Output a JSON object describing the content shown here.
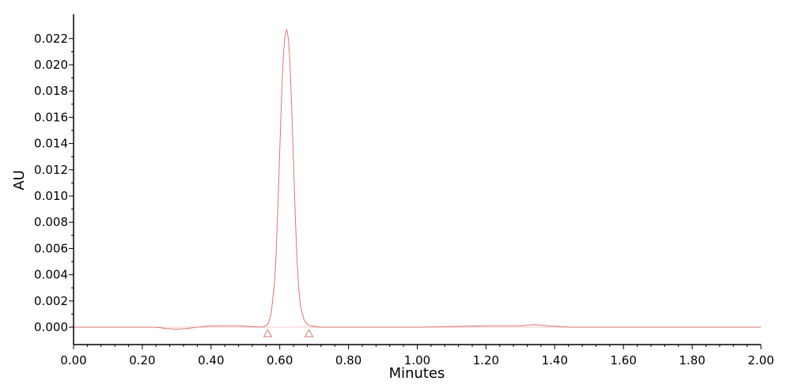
{
  "chart_data": {
    "type": "line",
    "xlabel": "Minutes",
    "ylabel": "AU",
    "xlim": [
      0.0,
      2.0
    ],
    "ylim": [
      -0.0013,
      0.0235
    ],
    "x_ticks": [
      "0.00",
      "0.20",
      "0.40",
      "0.60",
      "0.80",
      "1.00",
      "1.20",
      "1.40",
      "1.60",
      "1.80",
      "2.00"
    ],
    "y_ticks": [
      "0.000",
      "0.002",
      "0.004",
      "0.006",
      "0.008",
      "0.010",
      "0.012",
      "0.014",
      "0.016",
      "0.018",
      "0.020",
      "0.022"
    ],
    "grid": false,
    "legend": "none",
    "series": [
      {
        "color": "#d9776f",
        "x": [
          0.0,
          0.24,
          0.27,
          0.3,
          0.33,
          0.36,
          0.4,
          0.48,
          0.55,
          0.565,
          0.575,
          0.585,
          0.59,
          0.595,
          0.6,
          0.605,
          0.61,
          0.615,
          0.62,
          0.625,
          0.63,
          0.635,
          0.64,
          0.645,
          0.65,
          0.655,
          0.66,
          0.67,
          0.68,
          0.69,
          0.72,
          0.8,
          1.0,
          1.2,
          1.3,
          1.34,
          1.38,
          1.45,
          2.0
        ],
        "y": [
          0.0,
          0.0,
          -0.0001,
          -0.00015,
          -0.0001,
          0.0,
          0.0001,
          0.0001,
          0.0,
          0.0002,
          0.001,
          0.0035,
          0.006,
          0.0095,
          0.0135,
          0.0175,
          0.0205,
          0.0222,
          0.0227,
          0.022,
          0.02,
          0.0165,
          0.0125,
          0.0085,
          0.0052,
          0.003,
          0.0016,
          0.0006,
          0.0002,
          0.0001,
          0.0,
          0.0,
          0.0,
          0.0001,
          0.0001,
          0.0002,
          0.0001,
          0.0,
          0.0
        ]
      }
    ],
    "markers": [
      {
        "x": 0.565,
        "y": 0.0,
        "shape": "triangle",
        "color": "#d9776f"
      },
      {
        "x": 0.685,
        "y": 0.0,
        "shape": "triangle",
        "color": "#d9776f"
      }
    ]
  }
}
